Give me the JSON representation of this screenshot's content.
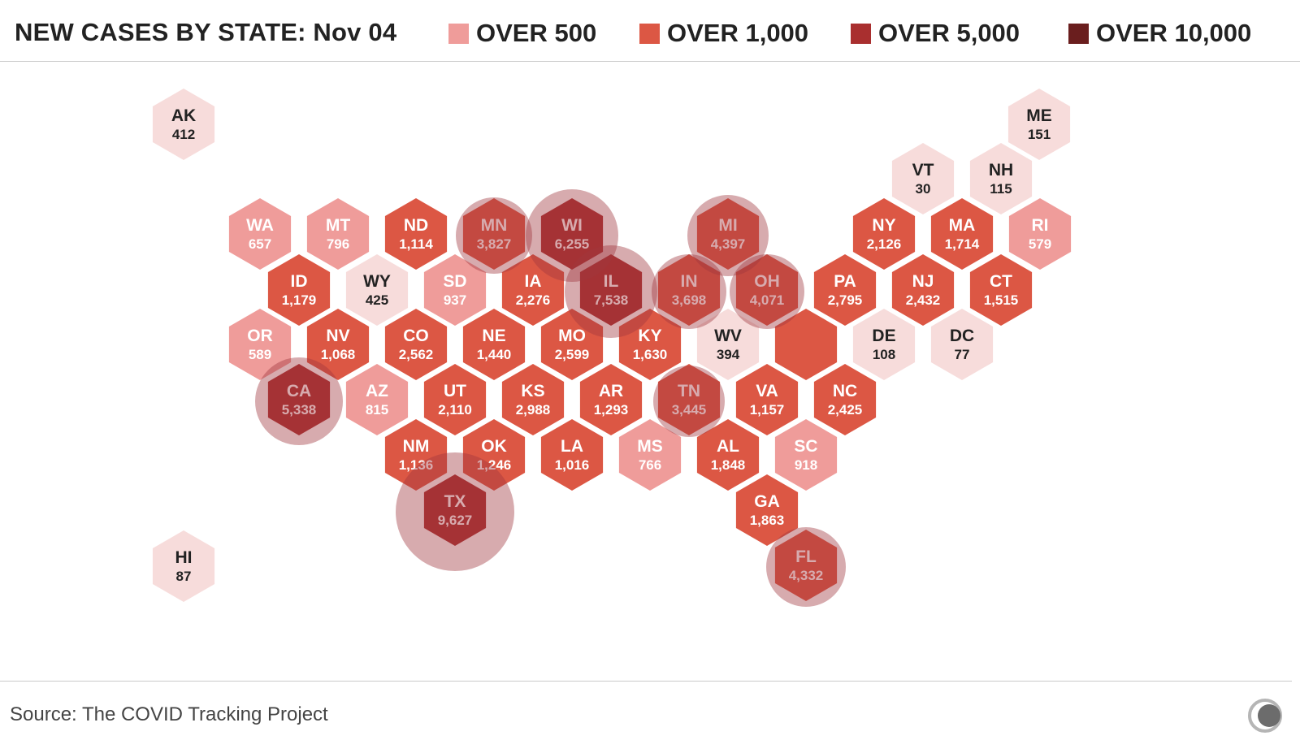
{
  "title": "NEW CASES BY STATE: Nov 04",
  "legend": [
    {
      "label": "OVER 500",
      "color": "#ef9c9a"
    },
    {
      "label": "OVER 1,000",
      "color": "#dc5744"
    },
    {
      "label": "OVER 5,000",
      "color": "#a92f2f"
    },
    {
      "label": "OVER 10,000",
      "color": "#6a1e1e"
    }
  ],
  "colors": {
    "under_500": "#f7dcdb",
    "over_500": "#ef9c9a",
    "over_1000": "#dc5744",
    "over_5000": "#a92f2f",
    "circle": "#a0383d",
    "text_light": "#ffffff",
    "text_dark": "#222222"
  },
  "states": [
    {
      "abbr": "AK",
      "cases": 412
    },
    {
      "abbr": "HI",
      "cases": 87
    },
    {
      "abbr": "ME",
      "cases": 151
    },
    {
      "abbr": "VT",
      "cases": 30
    },
    {
      "abbr": "NH",
      "cases": 115
    },
    {
      "abbr": "WA",
      "cases": 657
    },
    {
      "abbr": "MT",
      "cases": 796
    },
    {
      "abbr": "ND",
      "cases": 1114
    },
    {
      "abbr": "MN",
      "cases": 3827
    },
    {
      "abbr": "WI",
      "cases": 6255
    },
    {
      "abbr": "MI",
      "cases": 4397
    },
    {
      "abbr": "NY",
      "cases": 2126
    },
    {
      "abbr": "MA",
      "cases": 1714
    },
    {
      "abbr": "RI",
      "cases": 579
    },
    {
      "abbr": "ID",
      "cases": 1179
    },
    {
      "abbr": "WY",
      "cases": 425
    },
    {
      "abbr": "SD",
      "cases": 937
    },
    {
      "abbr": "IA",
      "cases": 2276
    },
    {
      "abbr": "IL",
      "cases": 7538
    },
    {
      "abbr": "IN",
      "cases": 3698
    },
    {
      "abbr": "OH",
      "cases": 4071
    },
    {
      "abbr": "PA",
      "cases": 2795
    },
    {
      "abbr": "NJ",
      "cases": 2432
    },
    {
      "abbr": "CT",
      "cases": 1515
    },
    {
      "abbr": "OR",
      "cases": 589
    },
    {
      "abbr": "NV",
      "cases": 1068
    },
    {
      "abbr": "CO",
      "cases": 2562
    },
    {
      "abbr": "NE",
      "cases": 1440
    },
    {
      "abbr": "MO",
      "cases": 2599
    },
    {
      "abbr": "KY",
      "cases": 1630
    },
    {
      "abbr": "WV",
      "cases": 394
    },
    {
      "abbr": "",
      "cases": null
    },
    {
      "abbr": "DE",
      "cases": 108
    },
    {
      "abbr": "DC",
      "cases": 77
    },
    {
      "abbr": "CA",
      "cases": 5338
    },
    {
      "abbr": "AZ",
      "cases": 815
    },
    {
      "abbr": "UT",
      "cases": 2110
    },
    {
      "abbr": "KS",
      "cases": 2988
    },
    {
      "abbr": "AR",
      "cases": 1293
    },
    {
      "abbr": "TN",
      "cases": 3445
    },
    {
      "abbr": "VA",
      "cases": 1157
    },
    {
      "abbr": "NC",
      "cases": 2425
    },
    {
      "abbr": "NM",
      "cases": 1136
    },
    {
      "abbr": "OK",
      "cases": 1246
    },
    {
      "abbr": "LA",
      "cases": 1016
    },
    {
      "abbr": "MS",
      "cases": 766
    },
    {
      "abbr": "AL",
      "cases": 1848
    },
    {
      "abbr": "SC",
      "cases": 918
    },
    {
      "abbr": "TX",
      "cases": 9627
    },
    {
      "abbr": "GA",
      "cases": 1863
    },
    {
      "abbr": "FL",
      "cases": 4332
    }
  ],
  "source": "Source: The COVID Tracking Project"
}
